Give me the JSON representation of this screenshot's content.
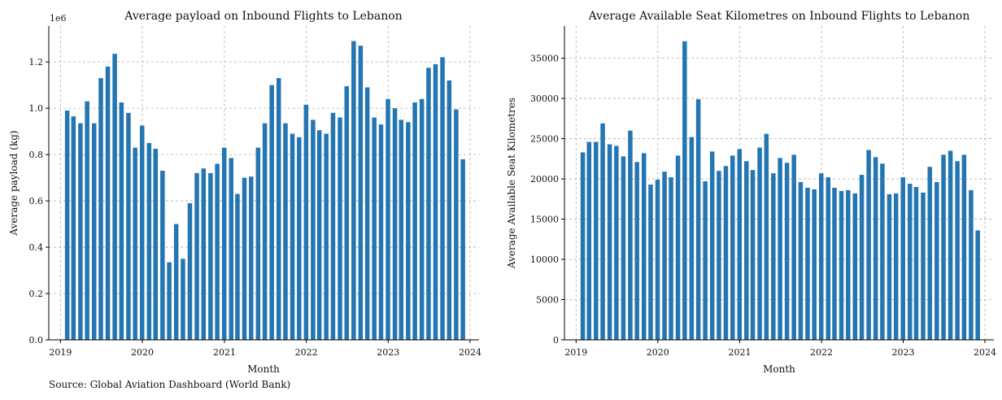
{
  "source_note": "Source: Global Aviation Dashboard (World Bank)",
  "colors": {
    "bar": "#2476b2"
  },
  "chart_data": [
    {
      "type": "bar",
      "title": "Average payload on Inbound Flights to Lebanon",
      "xlabel": "Month",
      "ylabel": "Average payload (kg)",
      "offset_label": "1e6",
      "x_ticks": [
        "2019",
        "2020",
        "2021",
        "2022",
        "2023",
        "2024"
      ],
      "y_ticks": [
        "0.0",
        "0.2",
        "0.4",
        "0.6",
        "0.8",
        "1.0",
        "1.2"
      ],
      "y_tick_values": [
        0,
        0.2,
        0.4,
        0.6,
        0.8,
        1.0,
        1.2
      ],
      "ylim": [
        0,
        1.355
      ],
      "xlim": [
        "2018-11-10",
        "2024-02-10"
      ],
      "grid": true,
      "dates": [
        "2019-01-31",
        "2019-02-28",
        "2019-03-31",
        "2019-04-30",
        "2019-05-31",
        "2019-06-30",
        "2019-07-31",
        "2019-08-31",
        "2019-09-30",
        "2019-10-31",
        "2019-11-30",
        "2019-12-31",
        "2020-01-31",
        "2020-02-29",
        "2020-03-31",
        "2020-04-30",
        "2020-05-31",
        "2020-06-30",
        "2020-07-31",
        "2020-08-31",
        "2020-09-30",
        "2020-10-31",
        "2020-11-30",
        "2020-12-31",
        "2021-01-31",
        "2021-02-28",
        "2021-03-31",
        "2021-04-30",
        "2021-05-31",
        "2021-06-30",
        "2021-07-31",
        "2021-08-31",
        "2021-09-30",
        "2021-10-31",
        "2021-11-30",
        "2021-12-31",
        "2022-01-31",
        "2022-02-28",
        "2022-03-31",
        "2022-04-30",
        "2022-05-31",
        "2022-06-30",
        "2022-07-31",
        "2022-08-31",
        "2022-09-30",
        "2022-10-31",
        "2022-11-30",
        "2022-12-31",
        "2023-01-31",
        "2023-02-28",
        "2023-03-31",
        "2023-04-30",
        "2023-05-31",
        "2023-06-30",
        "2023-07-31",
        "2023-08-31",
        "2023-09-30",
        "2023-10-31",
        "2023-11-30",
        "2023-12-31"
      ],
      "values": [
        0.99,
        0.965,
        0.935,
        1.03,
        0.935,
        1.13,
        1.18,
        1.235,
        1.025,
        0.98,
        0.83,
        0.925,
        0.85,
        0.825,
        0.73,
        0.335,
        0.5,
        0.35,
        0.59,
        0.72,
        0.74,
        0.72,
        0.76,
        0.83,
        0.785,
        0.63,
        0.7,
        0.705,
        0.83,
        0.935,
        1.1,
        1.13,
        0.935,
        0.89,
        0.875,
        1.015,
        0.95,
        0.905,
        0.89,
        0.98,
        0.96,
        1.095,
        1.29,
        1.27,
        1.09,
        0.96,
        0.93,
        1.04,
        1.0,
        0.95,
        0.94,
        1.025,
        1.04,
        1.175,
        1.19,
        1.22,
        1.12,
        0.995,
        0.78,
        0
      ]
    },
    {
      "type": "bar",
      "title": "Average Available Seat Kilometres on Inbound Flights to Lebanon",
      "xlabel": "Month",
      "ylabel": "Average Available Seat Kilometres",
      "x_ticks": [
        "2019",
        "2020",
        "2021",
        "2022",
        "2023",
        "2024"
      ],
      "y_ticks": [
        "0",
        "5000",
        "10000",
        "15000",
        "20000",
        "25000",
        "30000",
        "35000"
      ],
      "y_tick_values": [
        0,
        5000,
        10000,
        15000,
        20000,
        25000,
        30000,
        35000
      ],
      "ylim": [
        0,
        39000
      ],
      "xlim": [
        "2018-11-10",
        "2024-02-10"
      ],
      "grid": true,
      "dates": [
        "2019-01-31",
        "2019-02-28",
        "2019-03-31",
        "2019-04-30",
        "2019-05-31",
        "2019-06-30",
        "2019-07-31",
        "2019-08-31",
        "2019-09-30",
        "2019-10-31",
        "2019-11-30",
        "2019-12-31",
        "2020-01-31",
        "2020-02-29",
        "2020-03-31",
        "2020-04-30",
        "2020-05-31",
        "2020-06-30",
        "2020-07-31",
        "2020-08-31",
        "2020-09-30",
        "2020-10-31",
        "2020-11-30",
        "2020-12-31",
        "2021-01-31",
        "2021-02-28",
        "2021-03-31",
        "2021-04-30",
        "2021-05-31",
        "2021-06-30",
        "2021-07-31",
        "2021-08-31",
        "2021-09-30",
        "2021-10-31",
        "2021-11-30",
        "2021-12-31",
        "2022-01-31",
        "2022-02-28",
        "2022-03-31",
        "2022-04-30",
        "2022-05-31",
        "2022-06-30",
        "2022-07-31",
        "2022-08-31",
        "2022-09-30",
        "2022-10-31",
        "2022-11-30",
        "2022-12-31",
        "2023-01-31",
        "2023-02-28",
        "2023-03-31",
        "2023-04-30",
        "2023-05-31",
        "2023-06-30",
        "2023-07-31",
        "2023-08-31",
        "2023-09-30",
        "2023-10-31",
        "2023-11-30",
        "2023-12-31"
      ],
      "values": [
        23300,
        24600,
        24600,
        26900,
        24300,
        24100,
        22800,
        26000,
        22100,
        23200,
        19300,
        19900,
        20900,
        20200,
        22900,
        37100,
        25200,
        29900,
        19700,
        23400,
        21000,
        21600,
        22900,
        23700,
        22200,
        21100,
        23900,
        25600,
        20700,
        22600,
        22000,
        23000,
        19600,
        18900,
        18700,
        20700,
        20200,
        18900,
        18500,
        18600,
        18200,
        20500,
        23600,
        22700,
        21900,
        18100,
        18200,
        20200,
        19400,
        19000,
        18300,
        21500,
        19600,
        23000,
        23500,
        22200,
        23000,
        18600,
        13600,
        0
      ]
    }
  ]
}
